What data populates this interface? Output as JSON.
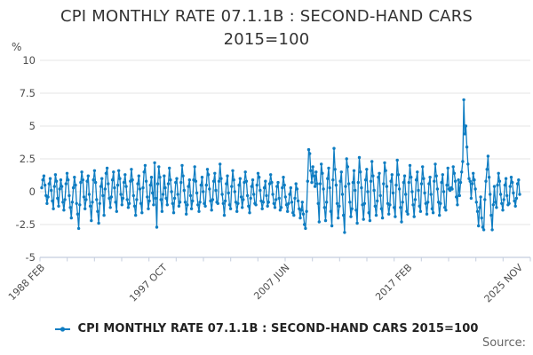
{
  "page": {
    "title_line1": "CPI MONTHLY RATE 07.1.1B : SECOND-HAND CARS",
    "title_line2": "2015=100",
    "source_label": "Source:"
  },
  "legend": {
    "label": "CPI MONTHLY RATE 07.1.1B : SECOND-HAND CARS 2015=100",
    "marker_color": "#0f7dc2"
  },
  "colors": {
    "line": "#0f7dc2",
    "grid": "#e4e4e4",
    "axis": "#c4cdde",
    "tick_text": "#4d4d4d",
    "title_text": "#333333",
    "source_text": "#666666"
  },
  "chart_data": {
    "type": "line",
    "title": "CPI MONTHLY RATE 07.1.1B : SECOND-HAND CARS 2015=100",
    "xlabel": "",
    "ylabel": "%",
    "ylim": [
      -5,
      10
    ],
    "ytick_values": [
      10,
      7.5,
      5,
      2.5,
      0,
      -2.5,
      -5
    ],
    "ytick_labels": [
      "10",
      "7.5",
      "5",
      "2.5",
      "0",
      "-2.5",
      "-5"
    ],
    "xtick_labels": [
      "1988 FEB",
      "1997 OCT",
      "2007 JUN",
      "2017 FEB",
      "2025 NOV"
    ],
    "xtick_month_index": [
      0,
      116,
      232,
      348,
      453
    ],
    "x_start": "1988 FEB",
    "x_end": "2025 NOV",
    "frequency": "monthly",
    "grid": "horizontal",
    "legend_position": "bottom",
    "marker": "circle",
    "values": [
      0.3,
      0.9,
      1.2,
      0.5,
      -0.3,
      -0.9,
      -0.4,
      0.6,
      1.0,
      0.1,
      -0.7,
      -1.3,
      0.4,
      1.3,
      0.8,
      -0.5,
      -1.1,
      0.2,
      0.9,
      0.4,
      -0.8,
      -1.4,
      -0.6,
      0.6,
      1.4,
      0.9,
      -0.3,
      -1.2,
      -2.0,
      -0.8,
      0.3,
      1.1,
      0.5,
      -0.9,
      -1.7,
      -2.8,
      -1.0,
      0.7,
      1.5,
      0.9,
      -0.4,
      -1.3,
      -0.6,
      0.8,
      1.2,
      -0.2,
      -1.1,
      -2.2,
      -0.8,
      0.9,
      1.6,
      0.7,
      -0.6,
      -1.5,
      -2.4,
      -0.9,
      0.4,
      1.0,
      -0.3,
      -1.8,
      0.2,
      1.4,
      1.8,
      0.6,
      -0.5,
      -1.2,
      -0.4,
      0.9,
      1.5,
      0.3,
      -0.8,
      -1.5,
      0.5,
      1.6,
      1.0,
      -0.2,
      -1.0,
      -0.5,
      0.7,
      1.3,
      0.4,
      -0.6,
      -1.2,
      -0.9,
      0.8,
      1.7,
      0.9,
      -0.3,
      -1.1,
      -1.8,
      -0.6,
      0.6,
      1.2,
      0.2,
      -0.9,
      -1.6,
      0.3,
      1.5,
      2.0,
      0.8,
      -0.4,
      -1.3,
      -0.7,
      0.5,
      1.1,
      -0.1,
      -1.0,
      2.2,
      -0.5,
      -2.7,
      0.6,
      1.9,
      1.1,
      -0.6,
      -1.5,
      -0.2,
      1.2,
      0.3,
      -0.5,
      -1.0,
      0.6,
      1.8,
      0.9,
      0.0,
      -0.9,
      -1.6,
      -0.5,
      0.7,
      1.0,
      -0.2,
      -1.1,
      -0.8,
      0.7,
      2.0,
      1.2,
      0.1,
      -0.8,
      -1.7,
      -1.0,
      0.4,
      0.9,
      -0.3,
      -1.3,
      -0.7,
      0.9,
      1.9,
      0.8,
      -0.1,
      -1.0,
      -1.5,
      -0.8,
      0.5,
      1.1,
      0.0,
      -0.9,
      -1.1,
      0.5,
      1.7,
      1.3,
      0.2,
      -0.7,
      -1.4,
      -0.6,
      0.8,
      1.4,
      0.1,
      -0.8,
      -0.9,
      0.8,
      2.1,
      1.0,
      -0.2,
      -0.9,
      -1.8,
      -0.7,
      0.6,
      1.2,
      -0.1,
      -1.0,
      -1.3,
      0.4,
      1.6,
      0.9,
      0.0,
      -0.8,
      -1.5,
      -0.9,
      0.5,
      1.0,
      -0.4,
      -1.2,
      -0.6,
      0.7,
      1.5,
      0.8,
      -0.3,
      -1.1,
      -1.6,
      -0.5,
      0.4,
      0.9,
      -0.2,
      -0.9,
      -1.0,
      0.5,
      1.4,
      1.1,
      0.1,
      -0.7,
      -1.3,
      -0.8,
      0.3,
      0.8,
      -0.3,
      -1.1,
      -0.8,
      0.6,
      1.3,
      0.7,
      -0.2,
      -0.9,
      -1.2,
      -0.6,
      0.4,
      0.7,
      -0.5,
      -1.4,
      -1.2,
      0.3,
      1.1,
      0.5,
      -0.4,
      -1.0,
      -1.5,
      -0.9,
      -0.2,
      0.3,
      -0.8,
      -1.6,
      -1.8,
      -0.5,
      0.6,
      0.2,
      -0.7,
      -1.3,
      -2.0,
      -1.4,
      -0.8,
      -1.7,
      -2.5,
      -2.8,
      -1.5,
      0.8,
      3.2,
      2.9,
      1.6,
      0.7,
      1.9,
      1.2,
      0.4,
      1.5,
      0.6,
      -0.9,
      -2.3,
      0.6,
      2.1,
      1.4,
      0.2,
      -1.2,
      -2.2,
      -0.8,
      1.0,
      1.8,
      0.3,
      -1.5,
      -2.6,
      0.9,
      3.3,
      1.7,
      0.5,
      -0.9,
      -2.0,
      -1.1,
      0.8,
      1.5,
      -0.2,
      -1.8,
      -3.1,
      0.4,
      2.5,
      1.9,
      0.6,
      -0.8,
      -1.9,
      -1.3,
      0.7,
      1.6,
      0.1,
      -1.4,
      -2.4,
      0.7,
      2.6,
      1.5,
      0.3,
      -1.0,
      -2.1,
      -0.9,
      0.9,
      1.7,
      0.0,
      -1.6,
      -2.2,
      0.8,
      2.3,
      1.2,
      0.1,
      -1.1,
      -1.8,
      -0.7,
      1.1,
      1.4,
      -0.3,
      -1.3,
      -2.0,
      0.6,
      2.2,
      1.6,
      0.4,
      -0.9,
      -1.7,
      -1.0,
      0.8,
      1.3,
      -0.1,
      -1.2,
      -1.9,
      0.5,
      2.4,
      1.3,
      0.2,
      -1.2,
      -2.3,
      -0.8,
      0.7,
      1.2,
      -0.2,
      -1.5,
      -1.7,
      0.7,
      2.0,
      1.1,
      0.0,
      -1.0,
      -1.9,
      -0.6,
      0.9,
      1.5,
      0.1,
      -1.1,
      -1.5,
      0.6,
      1.9,
      1.0,
      -0.1,
      -0.9,
      -1.7,
      -0.8,
      0.6,
      1.1,
      -0.2,
      -1.3,
      -1.6,
      0.8,
      2.1,
      1.2,
      0.2,
      -0.8,
      -1.8,
      -0.9,
      0.7,
      1.3,
      0.0,
      -1.2,
      -1.4,
      0.5,
      1.8,
      0.2,
      0.1,
      0.3,
      0.2,
      1.9,
      1.4,
      0.8,
      -0.4,
      -1.0,
      0.9,
      -0.3,
      0.7,
      1.5,
      2.3,
      7.0,
      4.4,
      5.0,
      3.4,
      2.1,
      1.0,
      0.8,
      -0.5,
      0.6,
      1.4,
      0.9,
      0.2,
      -0.8,
      -1.5,
      -2.6,
      -1.2,
      -0.4,
      -2.0,
      -2.7,
      -2.9,
      -0.6,
      0.8,
      1.7,
      2.7,
      1.1,
      -0.2,
      -1.8,
      -2.9,
      -1.0,
      0.4,
      -0.8,
      -1.2,
      0.5,
      1.4,
      0.8,
      -0.2,
      -0.9,
      -1.4,
      -0.6,
      0.5,
      1.0,
      -0.3,
      -1.0,
      -0.9,
      0.4,
      1.1,
      0.7,
      -0.1,
      -0.7,
      -1.1,
      -0.5,
      0.6,
      0.9,
      -0.2
    ]
  }
}
